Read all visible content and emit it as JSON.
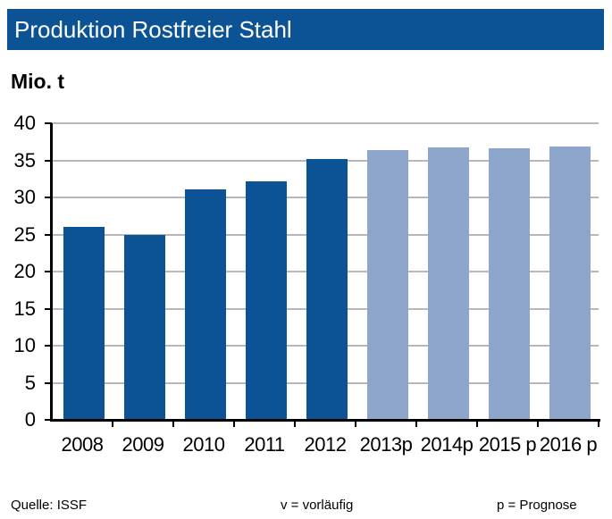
{
  "title": "Produktion Rostfreier Stahl",
  "unit": "Mio. t",
  "footer": {
    "source": "Quelle:  ISSF",
    "v_note": "v = vorläufig",
    "p_note": "p = Prognose"
  },
  "colors": {
    "header": "#0b5394",
    "actual": "#0b5394",
    "forecast": "#8ea5cc"
  },
  "chart_data": {
    "type": "bar",
    "title": "Produktion Rostfreier Stahl",
    "ylabel": "Mio. t",
    "xlabel": "",
    "categories": [
      "2008",
      "2009",
      "2010",
      "2011",
      "2012",
      "2013p",
      "2014p",
      "2015 p",
      "2016 p"
    ],
    "values": [
      26.0,
      24.9,
      31.1,
      32.2,
      35.2,
      36.4,
      36.7,
      36.6,
      36.9
    ],
    "forecast": [
      false,
      false,
      false,
      false,
      false,
      true,
      true,
      true,
      true
    ],
    "ylim": [
      0,
      40
    ],
    "yticks": [
      0,
      5,
      10,
      15,
      20,
      25,
      30,
      35,
      40
    ],
    "grid": true,
    "legend": "none"
  }
}
